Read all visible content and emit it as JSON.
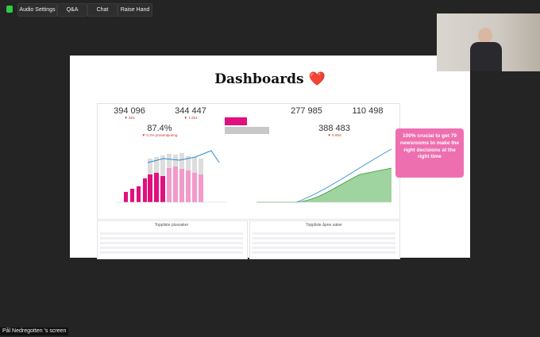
{
  "toolbar": {
    "buttons": [
      "Audio Settings",
      "Q&A",
      "Chat",
      "Raise Hand"
    ]
  },
  "slide": {
    "title": "Dashboards",
    "emoji": "❤️",
    "kpis_top": [
      {
        "value": "394 096",
        "delta": "▼ 501"
      },
      {
        "value": "344 447",
        "delta": "▼ 1 261"
      },
      {
        "value": "277 985"
      },
      {
        "value": "110 498"
      }
    ],
    "kpis_bottom": [
      {
        "value": "87.4%",
        "delta": "▼ 0.2% prosentpoeng"
      },
      {
        "value": "388 483",
        "delta": "▼ 6 804"
      }
    ],
    "callout": "100% crucial to get 79 newsrooms to make the right decisions at the right time",
    "tables": [
      "Toppliste plussaker",
      "Toppliste åpne saker"
    ]
  },
  "participant": {
    "name": "Pål Nedregotten",
    "screen_label": "'s screen"
  }
}
